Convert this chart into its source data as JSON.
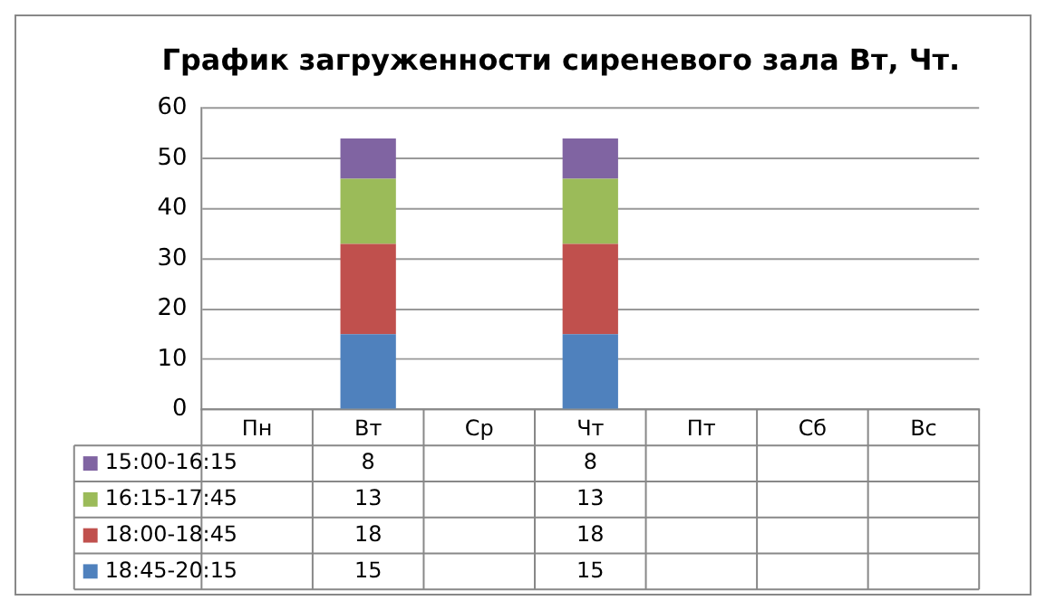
{
  "chart_data": {
    "type": "bar",
    "title": "График загруженности сиреневого зала Вт, Чт.",
    "categories": [
      "Пн",
      "Вт",
      "Ср",
      "Чт",
      "Пт",
      "Сб",
      "Вс"
    ],
    "stacked": true,
    "series": [
      {
        "name": "18:45-20:15",
        "color": "#4f81bd",
        "values": [
          null,
          15,
          null,
          15,
          null,
          null,
          null
        ]
      },
      {
        "name": "18:00-18:45",
        "color": "#c0504d",
        "values": [
          null,
          18,
          null,
          18,
          null,
          null,
          null
        ]
      },
      {
        "name": "16:15-17:45",
        "color": "#9bbb59",
        "values": [
          null,
          13,
          null,
          13,
          null,
          null,
          null
        ]
      },
      {
        "name": "15:00-16:15",
        "color": "#8064a2",
        "values": [
          null,
          8,
          null,
          8,
          null,
          null,
          null
        ]
      }
    ],
    "ylim": [
      0,
      60
    ],
    "yticks": [
      0,
      10,
      20,
      30,
      40,
      50,
      60
    ],
    "grid": "y",
    "legend": "bottom",
    "data_labels": true
  }
}
